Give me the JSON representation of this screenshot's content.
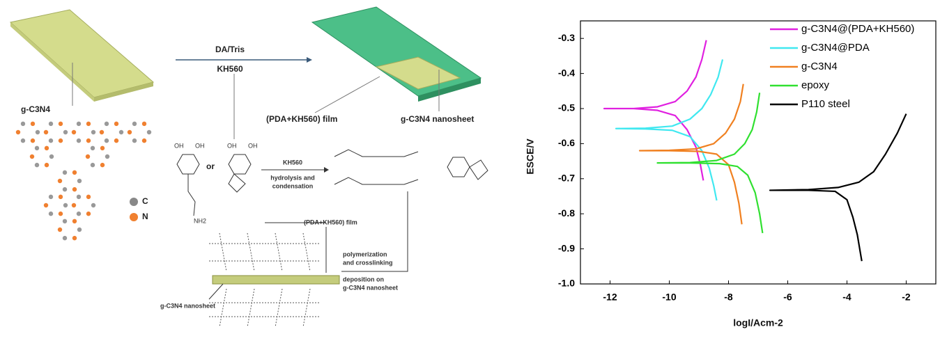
{
  "diagram": {
    "arrow_top_1": "DA/Tris",
    "arrow_top_2": "KH560",
    "gcn_label": "g-C3N4",
    "film_label": "(PDA+KH560) film",
    "nanosheet_label": "g-C3N4 nanosheet",
    "or": "or",
    "reaction_1": "KH560",
    "reaction_2": "hydrolysis  and",
    "reaction_3": "condensation",
    "legend_c": "C",
    "legend_n": "N",
    "film_label_2": "(PDA+KH560) film",
    "poly_1": "polymerization",
    "poly_2": "and crosslinking",
    "dep_1": "deposition on",
    "dep_2": "g-C3N4 nanosheet",
    "nanosheet_label_2": "g-C3N4 nanosheet",
    "oh": "OH",
    "nh2": "NH2"
  },
  "chart_data": {
    "type": "line",
    "x_label": "logI/Acm-2",
    "y_label": "ESCE/V",
    "xlim": [
      -13,
      -1
    ],
    "xticks": [
      -12,
      -10,
      -8,
      -6,
      -4,
      -2
    ],
    "ylim": [
      -1.0,
      -0.25
    ],
    "yticks": [
      {
        "value": -1.0,
        "label": "-1.0"
      },
      -0.9,
      -0.8,
      -0.7,
      -0.6,
      -0.5,
      -0.4,
      -0.3
    ],
    "legend": "upper right",
    "series": [
      {
        "name": "g-C3N4@(PDA+KH560)",
        "color": "#e020e0",
        "x": [
          -8.75,
          -8.9,
          -9.1,
          -9.4,
          -9.8,
          -10.4,
          -11.2,
          -12.2,
          -11.2,
          -10.4,
          -9.8,
          -9.4,
          -9.1,
          -8.95,
          -8.85
        ],
        "values": [
          -0.305,
          -0.36,
          -0.41,
          -0.45,
          -0.48,
          -0.495,
          -0.5,
          -0.5,
          -0.5,
          -0.505,
          -0.52,
          -0.56,
          -0.61,
          -0.66,
          -0.705
        ]
      },
      {
        "name": "g-C3N4@PDA",
        "color": "#40e8f0",
        "x": [
          -8.2,
          -8.35,
          -8.6,
          -8.9,
          -9.3,
          -9.9,
          -10.8,
          -11.8,
          -10.8,
          -9.9,
          -9.3,
          -8.9,
          -8.65,
          -8.5,
          -8.4
        ],
        "values": [
          -0.36,
          -0.41,
          -0.46,
          -0.5,
          -0.53,
          -0.55,
          -0.556,
          -0.557,
          -0.558,
          -0.562,
          -0.58,
          -0.62,
          -0.67,
          -0.72,
          -0.762
        ]
      },
      {
        "name": "g-C3N4",
        "color": "#f08020",
        "x": [
          -7.5,
          -7.6,
          -7.8,
          -8.1,
          -8.5,
          -9.1,
          -10,
          -11,
          -10,
          -9,
          -8.4,
          -8,
          -7.8,
          -7.65,
          -7.55
        ],
        "values": [
          -0.43,
          -0.48,
          -0.53,
          -0.57,
          -0.6,
          -0.615,
          -0.619,
          -0.62,
          -0.62,
          -0.622,
          -0.63,
          -0.66,
          -0.71,
          -0.77,
          -0.83
        ]
      },
      {
        "name": "epoxy",
        "color": "#30e030",
        "x": [
          -6.95,
          -7.05,
          -7.2,
          -7.45,
          -7.8,
          -8.4,
          -9.3,
          -10.4,
          -9.3,
          -8.3,
          -7.7,
          -7.35,
          -7.1,
          -6.95,
          -6.85
        ],
        "values": [
          -0.455,
          -0.51,
          -0.56,
          -0.6,
          -0.63,
          -0.648,
          -0.654,
          -0.655,
          -0.655,
          -0.657,
          -0.665,
          -0.69,
          -0.74,
          -0.8,
          -0.855
        ]
      },
      {
        "name": "P110 steel",
        "color": "#000000",
        "x": [
          -2,
          -2.3,
          -2.7,
          -3.1,
          -3.6,
          -4.3,
          -5.3,
          -6.6,
          -5.3,
          -4.4,
          -4,
          -3.8,
          -3.65,
          -3.55,
          -3.5
        ],
        "values": [
          -0.515,
          -0.57,
          -0.63,
          -0.68,
          -0.71,
          -0.725,
          -0.731,
          -0.733,
          -0.733,
          -0.736,
          -0.76,
          -0.81,
          -0.86,
          -0.91,
          -0.935
        ]
      }
    ]
  }
}
